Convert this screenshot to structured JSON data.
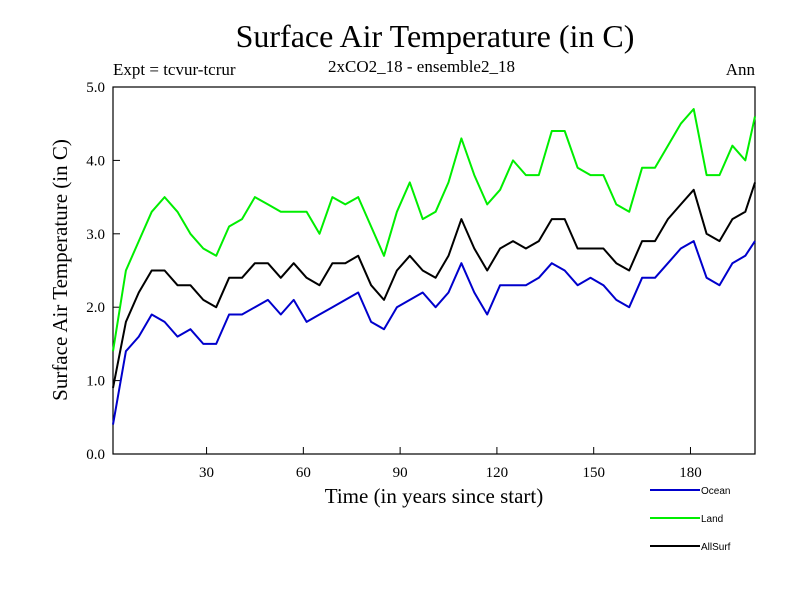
{
  "chart_data": {
    "type": "line",
    "title": "Surface Air Temperature (in C)",
    "expt_label": "Expt = tcvur-tcrur",
    "subtitle": "2xCO2_18 - ensemble2_18",
    "period": "Ann",
    "xlabel": "Time (in years since start)",
    "ylabel": "Surface Air Temperature (in C)",
    "xlim": [
      1,
      200
    ],
    "ylim": [
      0,
      5
    ],
    "x_ticks": [
      30,
      60,
      90,
      120,
      150,
      180
    ],
    "y_ticks": [
      "0.0",
      "1.0",
      "2.0",
      "3.0",
      "4.0",
      "5.0"
    ],
    "x": [
      1,
      5,
      9,
      13,
      17,
      21,
      25,
      29,
      33,
      37,
      41,
      45,
      49,
      53,
      57,
      61,
      65,
      69,
      73,
      77,
      81,
      85,
      89,
      93,
      97,
      101,
      105,
      109,
      113,
      117,
      121,
      125,
      129,
      133,
      137,
      141,
      145,
      149,
      153,
      157,
      161,
      165,
      169,
      173,
      177,
      181,
      185,
      189,
      193,
      197,
      200
    ],
    "series": [
      {
        "name": "Ocean",
        "color": "#0000cc",
        "values": [
          0.4,
          1.4,
          1.6,
          1.9,
          1.8,
          1.6,
          1.7,
          1.5,
          1.5,
          1.9,
          1.9,
          2.0,
          2.1,
          1.9,
          2.1,
          1.8,
          1.9,
          2.0,
          2.1,
          2.2,
          1.8,
          1.7,
          2.0,
          2.1,
          2.2,
          2.0,
          2.2,
          2.6,
          2.2,
          1.9,
          2.3,
          2.3,
          2.3,
          2.4,
          2.6,
          2.5,
          2.3,
          2.4,
          2.3,
          2.1,
          2.0,
          2.4,
          2.4,
          2.6,
          2.8,
          2.9,
          2.4,
          2.3,
          2.6,
          2.7,
          2.9
        ]
      },
      {
        "name": "Land",
        "color": "#00ee00",
        "values": [
          1.4,
          2.5,
          2.9,
          3.3,
          3.5,
          3.3,
          3.0,
          2.8,
          2.7,
          3.1,
          3.2,
          3.5,
          3.4,
          3.3,
          3.3,
          3.3,
          3.0,
          3.5,
          3.4,
          3.5,
          3.1,
          2.7,
          3.3,
          3.7,
          3.2,
          3.3,
          3.7,
          4.3,
          3.8,
          3.4,
          3.6,
          4.0,
          3.8,
          3.8,
          4.4,
          4.4,
          3.9,
          3.8,
          3.8,
          3.4,
          3.3,
          3.9,
          3.9,
          4.2,
          4.5,
          4.7,
          3.8,
          3.8,
          4.2,
          4.0,
          4.6
        ]
      },
      {
        "name": "AllSurf",
        "color": "#000000",
        "values": [
          0.9,
          1.8,
          2.2,
          2.5,
          2.5,
          2.3,
          2.3,
          2.1,
          2.0,
          2.4,
          2.4,
          2.6,
          2.6,
          2.4,
          2.6,
          2.4,
          2.3,
          2.6,
          2.6,
          2.7,
          2.3,
          2.1,
          2.5,
          2.7,
          2.5,
          2.4,
          2.7,
          3.2,
          2.8,
          2.5,
          2.8,
          2.9,
          2.8,
          2.9,
          3.2,
          3.2,
          2.8,
          2.8,
          2.8,
          2.6,
          2.5,
          2.9,
          2.9,
          3.2,
          3.4,
          3.6,
          3.0,
          2.9,
          3.2,
          3.3,
          3.7
        ]
      }
    ],
    "legend_position": "bottom-right"
  }
}
